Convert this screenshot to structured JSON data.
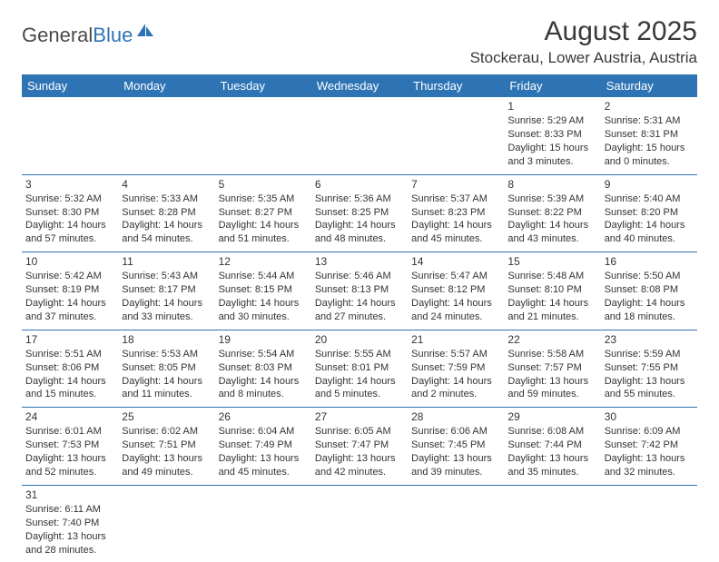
{
  "logo": {
    "part1": "General",
    "part2": "Blue"
  },
  "title": "August 2025",
  "location": "Stockerau, Lower Austria, Austria",
  "colors": {
    "header_bg": "#2e74b5",
    "header_fg": "#ffffff",
    "rule": "#2e74b5",
    "text": "#333333"
  },
  "weekdays": [
    "Sunday",
    "Monday",
    "Tuesday",
    "Wednesday",
    "Thursday",
    "Friday",
    "Saturday"
  ],
  "grid": [
    [
      null,
      null,
      null,
      null,
      null,
      {
        "n": "1",
        "sr": "Sunrise: 5:29 AM",
        "ss": "Sunset: 8:33 PM",
        "dl": "Daylight: 15 hours and 3 minutes."
      },
      {
        "n": "2",
        "sr": "Sunrise: 5:31 AM",
        "ss": "Sunset: 8:31 PM",
        "dl": "Daylight: 15 hours and 0 minutes."
      }
    ],
    [
      {
        "n": "3",
        "sr": "Sunrise: 5:32 AM",
        "ss": "Sunset: 8:30 PM",
        "dl": "Daylight: 14 hours and 57 minutes."
      },
      {
        "n": "4",
        "sr": "Sunrise: 5:33 AM",
        "ss": "Sunset: 8:28 PM",
        "dl": "Daylight: 14 hours and 54 minutes."
      },
      {
        "n": "5",
        "sr": "Sunrise: 5:35 AM",
        "ss": "Sunset: 8:27 PM",
        "dl": "Daylight: 14 hours and 51 minutes."
      },
      {
        "n": "6",
        "sr": "Sunrise: 5:36 AM",
        "ss": "Sunset: 8:25 PM",
        "dl": "Daylight: 14 hours and 48 minutes."
      },
      {
        "n": "7",
        "sr": "Sunrise: 5:37 AM",
        "ss": "Sunset: 8:23 PM",
        "dl": "Daylight: 14 hours and 45 minutes."
      },
      {
        "n": "8",
        "sr": "Sunrise: 5:39 AM",
        "ss": "Sunset: 8:22 PM",
        "dl": "Daylight: 14 hours and 43 minutes."
      },
      {
        "n": "9",
        "sr": "Sunrise: 5:40 AM",
        "ss": "Sunset: 8:20 PM",
        "dl": "Daylight: 14 hours and 40 minutes."
      }
    ],
    [
      {
        "n": "10",
        "sr": "Sunrise: 5:42 AM",
        "ss": "Sunset: 8:19 PM",
        "dl": "Daylight: 14 hours and 37 minutes."
      },
      {
        "n": "11",
        "sr": "Sunrise: 5:43 AM",
        "ss": "Sunset: 8:17 PM",
        "dl": "Daylight: 14 hours and 33 minutes."
      },
      {
        "n": "12",
        "sr": "Sunrise: 5:44 AM",
        "ss": "Sunset: 8:15 PM",
        "dl": "Daylight: 14 hours and 30 minutes."
      },
      {
        "n": "13",
        "sr": "Sunrise: 5:46 AM",
        "ss": "Sunset: 8:13 PM",
        "dl": "Daylight: 14 hours and 27 minutes."
      },
      {
        "n": "14",
        "sr": "Sunrise: 5:47 AM",
        "ss": "Sunset: 8:12 PM",
        "dl": "Daylight: 14 hours and 24 minutes."
      },
      {
        "n": "15",
        "sr": "Sunrise: 5:48 AM",
        "ss": "Sunset: 8:10 PM",
        "dl": "Daylight: 14 hours and 21 minutes."
      },
      {
        "n": "16",
        "sr": "Sunrise: 5:50 AM",
        "ss": "Sunset: 8:08 PM",
        "dl": "Daylight: 14 hours and 18 minutes."
      }
    ],
    [
      {
        "n": "17",
        "sr": "Sunrise: 5:51 AM",
        "ss": "Sunset: 8:06 PM",
        "dl": "Daylight: 14 hours and 15 minutes."
      },
      {
        "n": "18",
        "sr": "Sunrise: 5:53 AM",
        "ss": "Sunset: 8:05 PM",
        "dl": "Daylight: 14 hours and 11 minutes."
      },
      {
        "n": "19",
        "sr": "Sunrise: 5:54 AM",
        "ss": "Sunset: 8:03 PM",
        "dl": "Daylight: 14 hours and 8 minutes."
      },
      {
        "n": "20",
        "sr": "Sunrise: 5:55 AM",
        "ss": "Sunset: 8:01 PM",
        "dl": "Daylight: 14 hours and 5 minutes."
      },
      {
        "n": "21",
        "sr": "Sunrise: 5:57 AM",
        "ss": "Sunset: 7:59 PM",
        "dl": "Daylight: 14 hours and 2 minutes."
      },
      {
        "n": "22",
        "sr": "Sunrise: 5:58 AM",
        "ss": "Sunset: 7:57 PM",
        "dl": "Daylight: 13 hours and 59 minutes."
      },
      {
        "n": "23",
        "sr": "Sunrise: 5:59 AM",
        "ss": "Sunset: 7:55 PM",
        "dl": "Daylight: 13 hours and 55 minutes."
      }
    ],
    [
      {
        "n": "24",
        "sr": "Sunrise: 6:01 AM",
        "ss": "Sunset: 7:53 PM",
        "dl": "Daylight: 13 hours and 52 minutes."
      },
      {
        "n": "25",
        "sr": "Sunrise: 6:02 AM",
        "ss": "Sunset: 7:51 PM",
        "dl": "Daylight: 13 hours and 49 minutes."
      },
      {
        "n": "26",
        "sr": "Sunrise: 6:04 AM",
        "ss": "Sunset: 7:49 PM",
        "dl": "Daylight: 13 hours and 45 minutes."
      },
      {
        "n": "27",
        "sr": "Sunrise: 6:05 AM",
        "ss": "Sunset: 7:47 PM",
        "dl": "Daylight: 13 hours and 42 minutes."
      },
      {
        "n": "28",
        "sr": "Sunrise: 6:06 AM",
        "ss": "Sunset: 7:45 PM",
        "dl": "Daylight: 13 hours and 39 minutes."
      },
      {
        "n": "29",
        "sr": "Sunrise: 6:08 AM",
        "ss": "Sunset: 7:44 PM",
        "dl": "Daylight: 13 hours and 35 minutes."
      },
      {
        "n": "30",
        "sr": "Sunrise: 6:09 AM",
        "ss": "Sunset: 7:42 PM",
        "dl": "Daylight: 13 hours and 32 minutes."
      }
    ],
    [
      {
        "n": "31",
        "sr": "Sunrise: 6:11 AM",
        "ss": "Sunset: 7:40 PM",
        "dl": "Daylight: 13 hours and 28 minutes."
      },
      null,
      null,
      null,
      null,
      null,
      null
    ]
  ]
}
